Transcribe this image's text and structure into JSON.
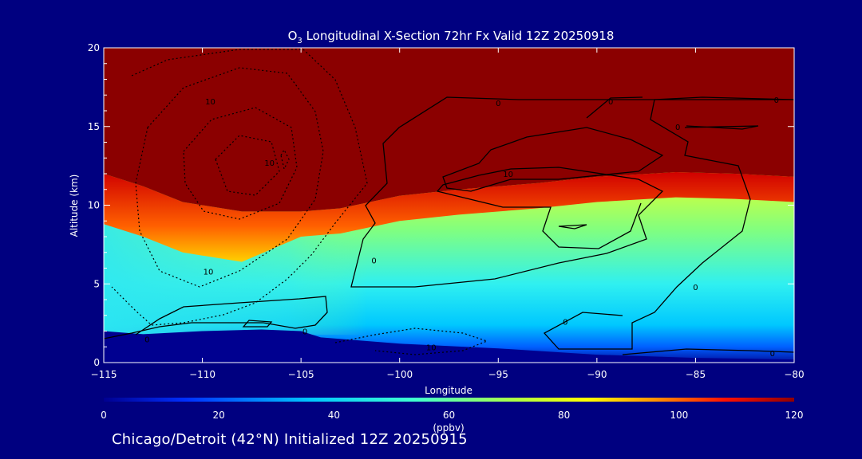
{
  "chart_data": {
    "type": "heatmap",
    "title_prefix": "O",
    "title_subscript": "3",
    "title_rest": " Longitudinal X-Section 72hr  Fx Valid 12Z 20250918",
    "xlabel": "Longitude",
    "ylabel": "Altitude (km)",
    "xlim": [
      -115,
      -80
    ],
    "ylim": [
      0,
      20
    ],
    "x_ticks": [
      -115,
      -110,
      -105,
      -100,
      -95,
      -90,
      -85,
      -80
    ],
    "x_tick_labels": [
      "−115",
      "−110",
      "−105",
      "−100",
      "−95",
      "−90",
      "−85",
      "−80"
    ],
    "y_ticks": [
      0,
      5,
      10,
      15,
      20
    ],
    "y_tick_labels": [
      "0",
      "5",
      "10",
      "15",
      "20"
    ],
    "colorbar": {
      "label": "(ppbv)",
      "range": [
        0,
        120
      ],
      "ticks": [
        0,
        20,
        40,
        60,
        80,
        100,
        120
      ],
      "tick_labels": [
        "0",
        "20",
        "40",
        "60",
        "80",
        "100",
        "120"
      ]
    },
    "tropopause_height_km": [
      [
        -115,
        12.0
      ],
      [
        -113,
        11.2
      ],
      [
        -111,
        10.2
      ],
      [
        -108,
        9.6
      ],
      [
        -105,
        9.6
      ],
      [
        -103,
        9.8
      ],
      [
        -100,
        10.6
      ],
      [
        -97,
        11.0
      ],
      [
        -93,
        11.4
      ],
      [
        -90,
        11.8
      ],
      [
        -86,
        12.1
      ],
      [
        -83,
        12.0
      ],
      [
        -80,
        11.8
      ]
    ],
    "surface_height_km": [
      [
        -115,
        2.0
      ],
      [
        -113,
        1.8
      ],
      [
        -110,
        2.0
      ],
      [
        -107,
        2.1
      ],
      [
        -105,
        2.0
      ],
      [
        -104,
        1.6
      ],
      [
        -100,
        1.2
      ],
      [
        -95,
        0.9
      ],
      [
        -90,
        0.5
      ],
      [
        -85,
        0.3
      ],
      [
        -80,
        0.2
      ]
    ],
    "contour_labels": [
      {
        "text": "10",
        "lon": -109.6,
        "alt": 16.6
      },
      {
        "text": "10",
        "lon": -109.7,
        "alt": 5.8
      },
      {
        "text": "10",
        "lon": -106.6,
        "alt": 12.7
      },
      {
        "text": "10",
        "lon": -98.4,
        "alt": 1.0
      },
      {
        "text": "10",
        "lon": -94.5,
        "alt": 12.0
      },
      {
        "text": "0",
        "lon": -95.0,
        "alt": 16.5
      },
      {
        "text": "0",
        "lon": -89.3,
        "alt": 16.6
      },
      {
        "text": "0",
        "lon": -80.9,
        "alt": 16.7
      },
      {
        "text": "0",
        "lon": -85.9,
        "alt": 15.0
      },
      {
        "text": "0",
        "lon": -101.3,
        "alt": 6.5
      },
      {
        "text": "0",
        "lon": -85.0,
        "alt": 4.8
      },
      {
        "text": "0",
        "lon": -104.8,
        "alt": 2.0
      },
      {
        "text": "0",
        "lon": -91.6,
        "alt": 2.6
      },
      {
        "text": "0",
        "lon": -81.1,
        "alt": 0.6
      },
      {
        "text": "0",
        "lon": -112.8,
        "alt": 1.5
      }
    ]
  },
  "footer": "Chicago/Detroit (42°N) Initialized 12Z 20250915"
}
